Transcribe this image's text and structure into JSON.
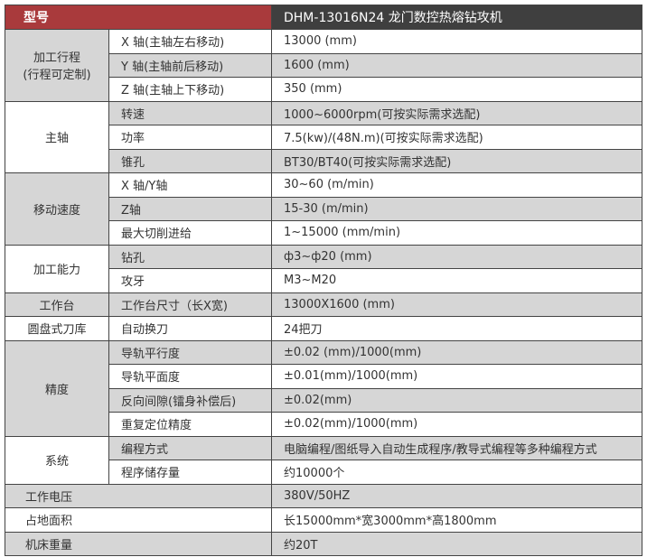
{
  "header": {
    "label": "型号",
    "model": "DHM-13016N24 龙门数控热熔钻攻机"
  },
  "colors": {
    "header_red": "#a93a3c",
    "header_dark": "#3f3f3f",
    "row_gray": "#d6d6d6"
  },
  "groups": [
    {
      "name": "加工行程\n(行程可定制)",
      "rows": [
        {
          "item": "X 轴(主轴左右移动)",
          "value": "13000 (mm)"
        },
        {
          "item": "Y 轴(主轴前后移动)",
          "value": "1600 (mm)"
        },
        {
          "item": "Z 轴(主轴上下移动)",
          "value": "350 (mm)"
        }
      ]
    },
    {
      "name": "主轴",
      "rows": [
        {
          "item": "转速",
          "value": "1000~6000rpm(可按实际需求选配)"
        },
        {
          "item": "功率",
          "value": "7.5(kw)/(48N.m)(可按实际需求选配)"
        },
        {
          "item": "锥孔",
          "value": "BT30/BT40(可按实际需求选配)"
        }
      ]
    },
    {
      "name": "移动速度",
      "rows": [
        {
          "item": "X 轴/Y轴",
          "value": "30~60 (m/min)"
        },
        {
          "item": "Z轴",
          "value": "15-30 (m/min)"
        },
        {
          "item": "最大切削进给",
          "value": "1~15000 (mm/min)"
        }
      ]
    },
    {
      "name": "加工能力",
      "rows": [
        {
          "item": "钻孔",
          "value": "ф3~ф20 (mm)"
        },
        {
          "item": "攻牙",
          "value": "M3~M20"
        }
      ]
    },
    {
      "name": "工作台",
      "rows": [
        {
          "item": "工作台尺寸（长X宽)",
          "value": "13000X1600 (mm)"
        }
      ]
    },
    {
      "name": "圆盘式刀库",
      "rows": [
        {
          "item": "自动换刀",
          "value": "24把刀"
        }
      ]
    },
    {
      "name": "精度",
      "rows": [
        {
          "item": "导轨平行度",
          "value": "±0.02 (mm)/1000(mm)"
        },
        {
          "item": "导轨平面度",
          "value": "±0.01(mm)/1000(mm)"
        },
        {
          "item": "反向间隙(镭身补偿后)",
          "value": "±0.02(mm)"
        },
        {
          "item": "重复定位精度",
          "value": "±0.02(mm)/1000(mm)"
        }
      ]
    },
    {
      "name": "系统",
      "rows": [
        {
          "item": "编程方式",
          "value": "电脑编程/图纸导入自动生成程序/教导式编程等多种编程方式"
        },
        {
          "item": "程序储存量",
          "value": "约10000个"
        }
      ]
    },
    {
      "name": "工作电压",
      "full": true,
      "value": "380V/50HZ"
    },
    {
      "name": "占地面积",
      "full": true,
      "value": "长15000mm*宽3000mm*高1800mm"
    },
    {
      "name": "机床重量",
      "full": true,
      "value": "约20T"
    }
  ]
}
